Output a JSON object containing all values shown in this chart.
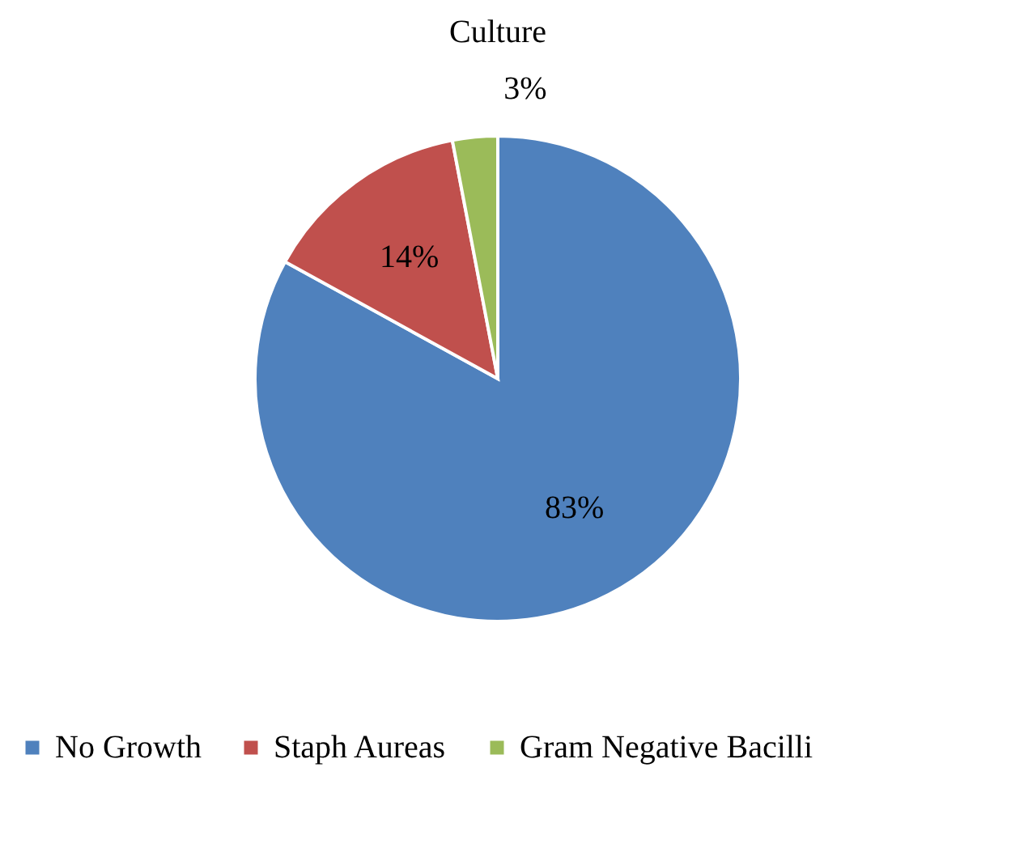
{
  "chart_data": {
    "type": "pie",
    "title": "Culture",
    "categories": [
      "No Growth",
      "Staph Aureas",
      "Gram Negative Bacilli"
    ],
    "values": [
      83,
      14,
      3
    ],
    "colors": [
      "#4f81bd",
      "#c0504d",
      "#9bbb59"
    ],
    "value_labels": [
      "83%",
      "14%",
      "3%"
    ],
    "legend": "bottom"
  }
}
